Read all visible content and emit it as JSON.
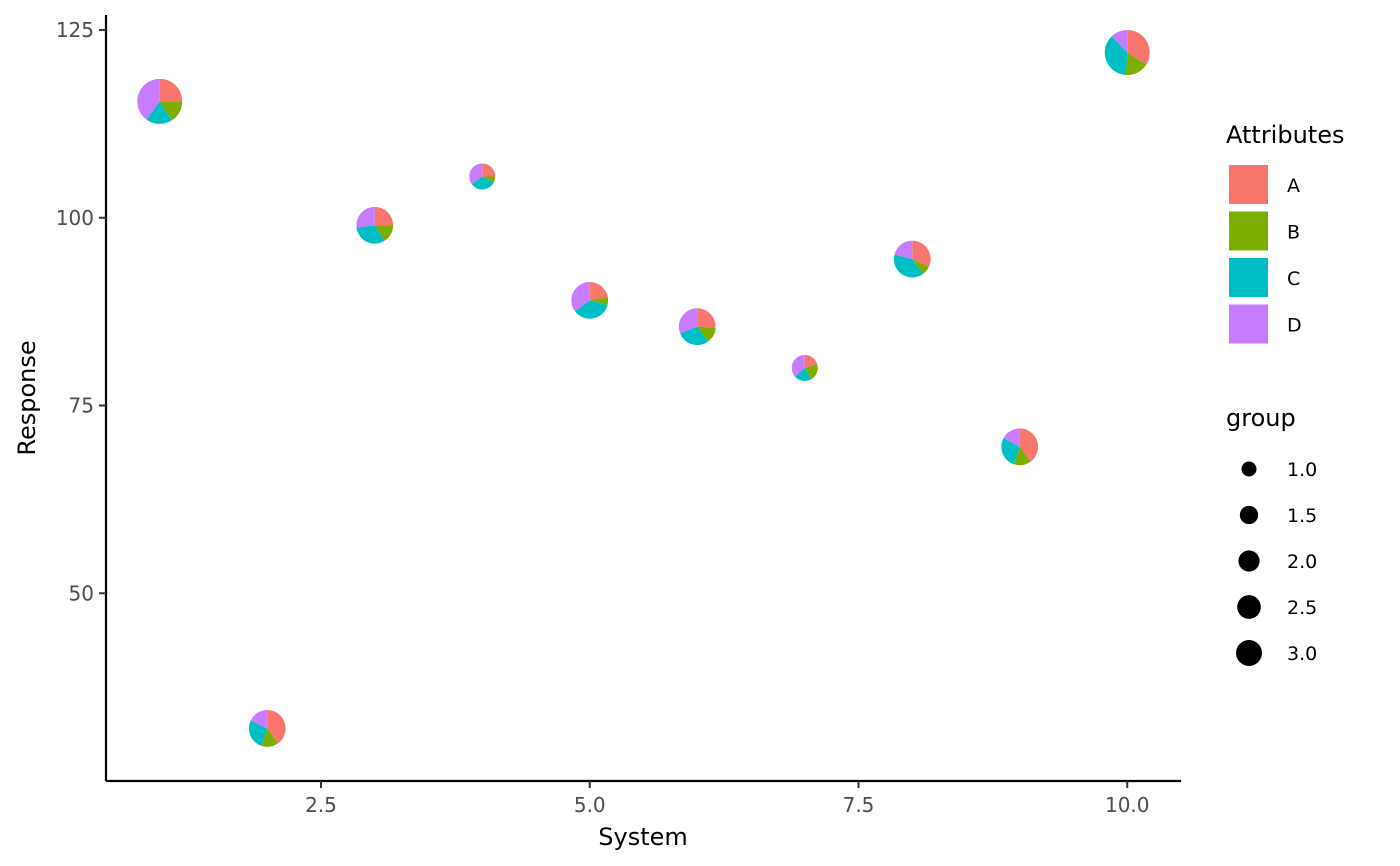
{
  "chart_data": {
    "type": "scatter",
    "subtype": "scatterpie",
    "title": "",
    "xlabel": "System",
    "ylabel": "Response",
    "xlim": [
      0.5,
      10.5
    ],
    "ylim": [
      25,
      127
    ],
    "x_ticks": [
      2.5,
      5.0,
      7.5,
      10.0
    ],
    "x_tick_labels": [
      "2.5",
      "5.0",
      "7.5",
      "10.0"
    ],
    "y_ticks": [
      50,
      75,
      100,
      125
    ],
    "y_tick_labels": [
      "50",
      "75",
      "100",
      "125"
    ],
    "grid": false,
    "categories": [
      "A",
      "B",
      "C",
      "D"
    ],
    "colors": {
      "A": "#F8766D",
      "B": "#7CAE00",
      "C": "#00BFC4",
      "D": "#C77CFF"
    },
    "fill_legend": {
      "title": "Attributes",
      "entries": [
        "A",
        "B",
        "C",
        "D"
      ],
      "placement": "right"
    },
    "size_legend": {
      "title": "group",
      "values": [
        1.0,
        1.5,
        2.0,
        2.5,
        3.0
      ],
      "labels": [
        "1.0",
        "1.5",
        "2.0",
        "2.5",
        "3.0"
      ],
      "placement": "right"
    },
    "points": [
      {
        "x": 1,
        "y": 115.5,
        "group": 3.0,
        "A": 0.25,
        "B": 0.16,
        "C": 0.19,
        "D": 0.4
      },
      {
        "x": 2,
        "y": 32,
        "group": 2.0,
        "A": 0.4,
        "B": 0.15,
        "C": 0.27,
        "D": 0.18
      },
      {
        "x": 3,
        "y": 99,
        "group": 2.0,
        "A": 0.25,
        "B": 0.16,
        "C": 0.32,
        "D": 0.27
      },
      {
        "x": 4,
        "y": 105.5,
        "group": 1.0,
        "A": 0.25,
        "B": 0.08,
        "C": 0.32,
        "D": 0.35
      },
      {
        "x": 5,
        "y": 89,
        "group": 2.0,
        "A": 0.22,
        "B": 0.07,
        "C": 0.36,
        "D": 0.35
      },
      {
        "x": 6,
        "y": 85.5,
        "group": 2.0,
        "A": 0.26,
        "B": 0.14,
        "C": 0.29,
        "D": 0.31
      },
      {
        "x": 7,
        "y": 80,
        "group": 1.0,
        "A": 0.2,
        "B": 0.22,
        "C": 0.22,
        "D": 0.36
      },
      {
        "x": 8,
        "y": 94.5,
        "group": 2.0,
        "A": 0.32,
        "B": 0.08,
        "C": 0.39,
        "D": 0.21
      },
      {
        "x": 9,
        "y": 69.5,
        "group": 2.0,
        "A": 0.4,
        "B": 0.15,
        "C": 0.28,
        "D": 0.17
      },
      {
        "x": 10,
        "y": 122,
        "group": 3.0,
        "A": 0.34,
        "B": 0.17,
        "C": 0.37,
        "D": 0.12
      }
    ]
  }
}
